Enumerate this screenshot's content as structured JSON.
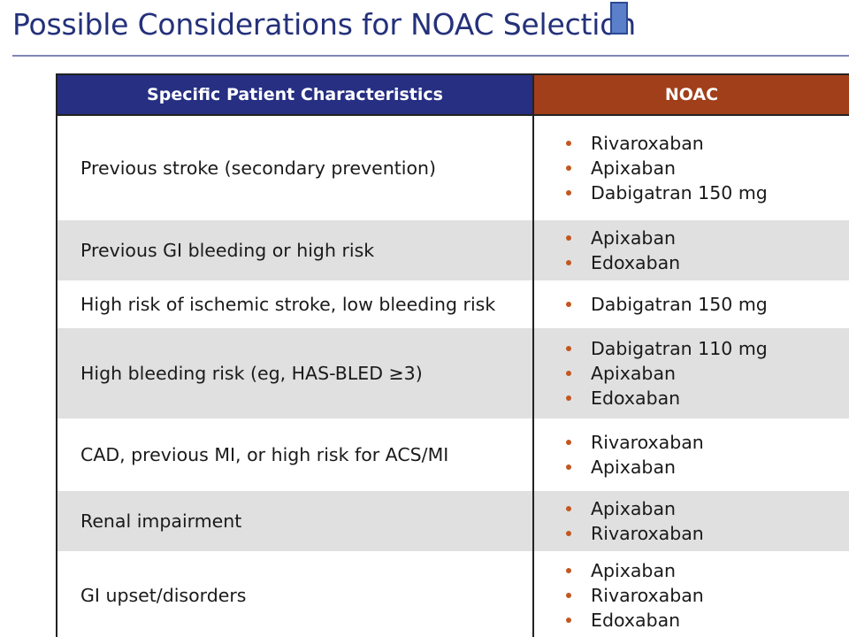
{
  "title": "Possible Considerations for NOAC Selection",
  "colors": {
    "title": "#24317a",
    "header_left_bg": "#262f82",
    "header_right_bg": "#a13f1a",
    "bullet": "#c2571f",
    "row_shade": "#e0e0e0"
  },
  "table": {
    "headers": [
      "Specific Patient Characteristics",
      "NOAC"
    ],
    "rows": [
      {
        "characteristic": "Previous stroke (secondary prevention)",
        "noacs": [
          "Rivaroxaban",
          "Apixaban",
          "Dabigatran 150 mg"
        ]
      },
      {
        "characteristic": "Previous GI bleeding or high risk",
        "noacs": [
          "Apixaban",
          "Edoxaban"
        ]
      },
      {
        "characteristic": "High risk of ischemic stroke, low bleeding risk",
        "noacs": [
          "Dabigatran 150 mg"
        ]
      },
      {
        "characteristic": "High bleeding risk (eg, HAS-BLED ≥3)",
        "noacs": [
          "Dabigatran 110 mg",
          "Apixaban",
          "Edoxaban"
        ]
      },
      {
        "characteristic": "CAD, previous MI, or high risk for ACS/MI",
        "noacs": [
          "Rivaroxaban",
          "Apixaban"
        ]
      },
      {
        "characteristic": "Renal impairment",
        "noacs": [
          "Apixaban",
          "Rivaroxaban"
        ]
      },
      {
        "characteristic": "GI upset/disorders",
        "noacs": [
          "Apixaban",
          "Rivaroxaban",
          "Edoxaban"
        ]
      }
    ]
  }
}
